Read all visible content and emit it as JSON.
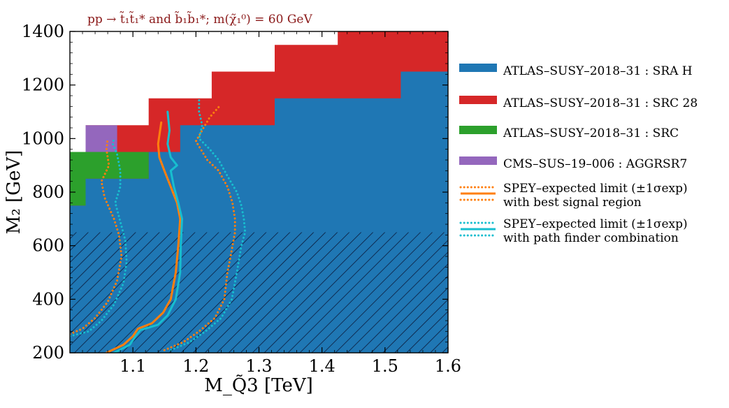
{
  "chart_data": {
    "type": "area",
    "title": "pp → t̃₁t̃₁* and b̃₁b̃₁*; m(χ̃₁⁰) = 60 GeV",
    "xlabel": "M_Q̃3 [TeV]",
    "ylabel": "M₂ [GeV]",
    "xlim": [
      1.0,
      1.6
    ],
    "ylim": [
      200,
      1400
    ],
    "xticks": [
      1.1,
      1.2,
      1.3,
      1.4,
      1.5,
      1.6
    ],
    "xtick_labels": [
      "1.1",
      "1.2",
      "1.3",
      "1.4",
      "1.5",
      "1.6"
    ],
    "yticks": [
      200,
      400,
      600,
      800,
      1000,
      1200,
      1400
    ],
    "ytick_labels": [
      "200",
      "400",
      "600",
      "800",
      "1000",
      "1200",
      "1400"
    ],
    "grid": false,
    "legend_position": "outside-right",
    "hatched_region": {
      "y_max": 650
    },
    "regions": [
      {
        "name": "ATLAS–SUSY–2018–31 : SRC 28",
        "color": "#d62728",
        "outline": [
          [
            1.0,
            200
          ],
          [
            1.0,
            950
          ],
          [
            1.025,
            950
          ],
          [
            1.025,
            1050
          ],
          [
            1.075,
            1050
          ],
          [
            1.075,
            1050
          ],
          [
            1.125,
            1050
          ],
          [
            1.125,
            1150
          ],
          [
            1.225,
            1150
          ],
          [
            1.225,
            1250
          ],
          [
            1.325,
            1250
          ],
          [
            1.325,
            1350
          ],
          [
            1.425,
            1350
          ],
          [
            1.425,
            1400
          ],
          [
            1.6,
            1400
          ],
          [
            1.6,
            200
          ]
        ]
      },
      {
        "name": "ATLAS–SUSY–2018–31 : SRA H",
        "color": "#1f77b4",
        "outline": [
          [
            1.0,
            200
          ],
          [
            1.0,
            750
          ],
          [
            1.025,
            750
          ],
          [
            1.025,
            850
          ],
          [
            1.125,
            850
          ],
          [
            1.125,
            950
          ],
          [
            1.175,
            950
          ],
          [
            1.175,
            1050
          ],
          [
            1.325,
            1050
          ],
          [
            1.325,
            1150
          ],
          [
            1.525,
            1150
          ],
          [
            1.525,
            1250
          ],
          [
            1.6,
            1250
          ],
          [
            1.6,
            200
          ]
        ]
      },
      {
        "name": "ATLAS–SUSY–2018–31 : SRC",
        "color": "#2ca02c",
        "outline": [
          [
            1.0,
            750
          ],
          [
            1.0,
            950
          ],
          [
            1.125,
            950
          ],
          [
            1.125,
            850
          ],
          [
            1.025,
            850
          ],
          [
            1.025,
            750
          ]
        ]
      },
      {
        "name": "CMS–SUS–19–006 : AGGRSR7",
        "color": "#9467bd",
        "outline": [
          [
            1.025,
            950
          ],
          [
            1.025,
            1050
          ],
          [
            1.075,
            1050
          ],
          [
            1.075,
            950
          ]
        ]
      }
    ],
    "series": [
      {
        "name": "best_central",
        "color": "#ff7f0e",
        "style": "solid",
        "points": [
          [
            1.058,
            200
          ],
          [
            1.085,
            230
          ],
          [
            1.1,
            262
          ],
          [
            1.108,
            290
          ],
          [
            1.13,
            310
          ],
          [
            1.148,
            350
          ],
          [
            1.16,
            400
          ],
          [
            1.168,
            500
          ],
          [
            1.172,
            600
          ],
          [
            1.175,
            700
          ],
          [
            1.17,
            760
          ],
          [
            1.16,
            820
          ],
          [
            1.15,
            880
          ],
          [
            1.142,
            930
          ],
          [
            1.14,
            980
          ],
          [
            1.145,
            1060
          ]
        ]
      },
      {
        "name": "best_lower",
        "color": "#ff7f0e",
        "style": "dotted",
        "points": [
          [
            1.0,
            270
          ],
          [
            1.02,
            290
          ],
          [
            1.04,
            330
          ],
          [
            1.06,
            390
          ],
          [
            1.075,
            470
          ],
          [
            1.082,
            560
          ],
          [
            1.078,
            640
          ],
          [
            1.07,
            700
          ],
          [
            1.055,
            780
          ],
          [
            1.05,
            840
          ],
          [
            1.062,
            900
          ],
          [
            1.058,
            960
          ],
          [
            1.06,
            1000
          ]
        ]
      },
      {
        "name": "best_upper",
        "color": "#ff7f0e",
        "style": "dotted",
        "points": [
          [
            1.15,
            210
          ],
          [
            1.18,
            240
          ],
          [
            1.205,
            280
          ],
          [
            1.23,
            330
          ],
          [
            1.245,
            400
          ],
          [
            1.25,
            500
          ],
          [
            1.255,
            560
          ],
          [
            1.262,
            650
          ],
          [
            1.262,
            700
          ],
          [
            1.258,
            760
          ],
          [
            1.25,
            820
          ],
          [
            1.236,
            880
          ],
          [
            1.218,
            920
          ],
          [
            1.2,
            990
          ],
          [
            1.212,
            1040
          ],
          [
            1.222,
            1080
          ],
          [
            1.237,
            1120
          ]
        ]
      },
      {
        "name": "path_central",
        "color": "#17becf",
        "style": "solid",
        "points": [
          [
            1.07,
            200
          ],
          [
            1.095,
            230
          ],
          [
            1.104,
            262
          ],
          [
            1.112,
            285
          ],
          [
            1.14,
            305
          ],
          [
            1.155,
            340
          ],
          [
            1.168,
            400
          ],
          [
            1.175,
            500
          ],
          [
            1.176,
            600
          ],
          [
            1.178,
            700
          ],
          [
            1.172,
            760
          ],
          [
            1.165,
            820
          ],
          [
            1.16,
            880
          ],
          [
            1.17,
            900
          ],
          [
            1.16,
            930
          ],
          [
            1.155,
            980
          ],
          [
            1.158,
            1030
          ],
          [
            1.155,
            1100
          ]
        ]
      },
      {
        "name": "path_lower",
        "color": "#17becf",
        "style": "dotted",
        "points": [
          [
            1.0,
            262
          ],
          [
            1.03,
            280
          ],
          [
            1.05,
            320
          ],
          [
            1.07,
            380
          ],
          [
            1.085,
            460
          ],
          [
            1.09,
            540
          ],
          [
            1.088,
            620
          ],
          [
            1.08,
            690
          ],
          [
            1.072,
            760
          ],
          [
            1.08,
            820
          ],
          [
            1.08,
            880
          ],
          [
            1.075,
            940
          ],
          [
            1.068,
            980
          ],
          [
            1.07,
            1000
          ]
        ]
      },
      {
        "name": "path_upper",
        "color": "#17becf",
        "style": "dotted",
        "points": [
          [
            1.16,
            210
          ],
          [
            1.19,
            240
          ],
          [
            1.215,
            280
          ],
          [
            1.24,
            330
          ],
          [
            1.257,
            400
          ],
          [
            1.265,
            500
          ],
          [
            1.272,
            600
          ],
          [
            1.278,
            650
          ],
          [
            1.276,
            700
          ],
          [
            1.272,
            750
          ],
          [
            1.265,
            800
          ],
          [
            1.25,
            860
          ],
          [
            1.236,
            920
          ],
          [
            1.222,
            960
          ],
          [
            1.205,
            1000
          ],
          [
            1.21,
            1050
          ],
          [
            1.205,
            1100
          ],
          [
            1.205,
            1150
          ]
        ]
      }
    ],
    "legend": [
      {
        "label": "ATLAS–SUSY–2018–31 :  SRA H",
        "color": "#1f77b4",
        "kind": "patch"
      },
      {
        "label": "ATLAS–SUSY–2018–31 :  SRC 28",
        "color": "#d62728",
        "kind": "patch"
      },
      {
        "label": "ATLAS–SUSY–2018–31 :  SRC",
        "color": "#2ca02c",
        "kind": "patch"
      },
      {
        "label": "CMS–SUS–19–006 :  AGGRSR7",
        "color": "#9467bd",
        "kind": "patch"
      },
      {
        "label": "SPEY–expected limit (±1σexp)",
        "label2": "with best signal region",
        "color": "#ff7f0e",
        "kind": "lines"
      },
      {
        "label": "SPEY–expected limit (±1σexp)",
        "label2": "with path finder combination",
        "color": "#17becf",
        "kind": "lines"
      }
    ]
  }
}
